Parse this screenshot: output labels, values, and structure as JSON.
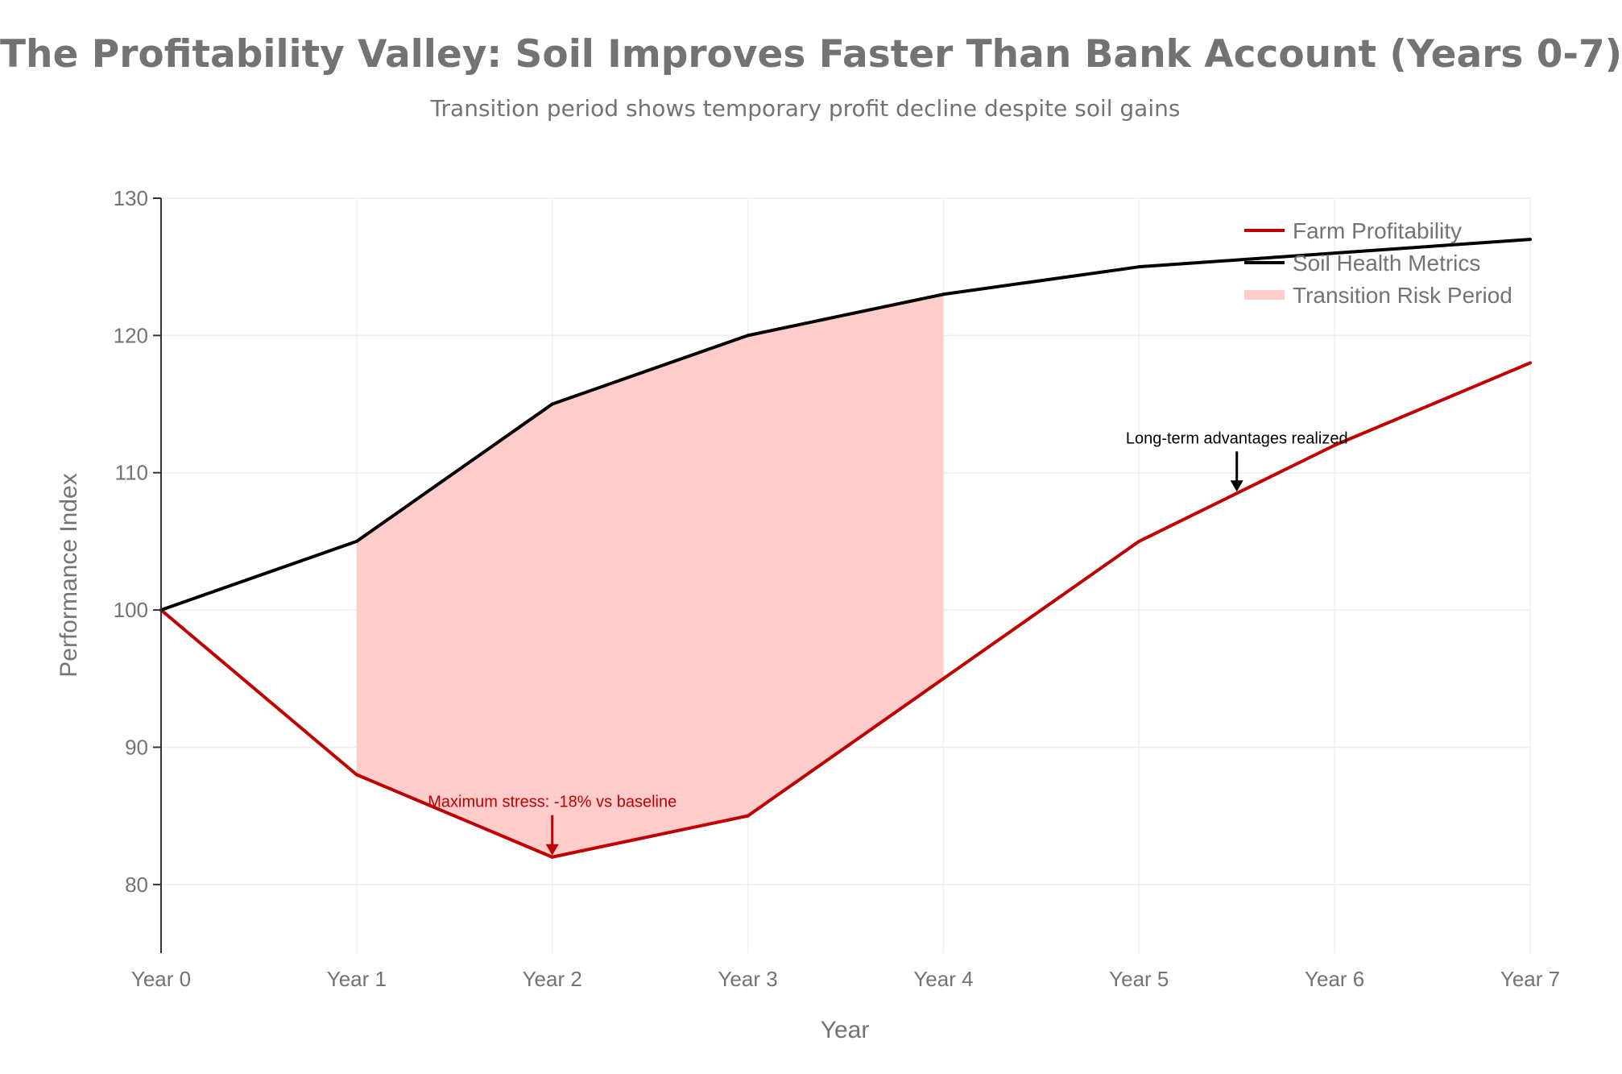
{
  "title": "The Profitability Valley: Soil Improves Faster Than Bank Account (Years 0-7)",
  "subtitle": "Transition period shows temporary profit decline despite soil gains",
  "chart_data": {
    "type": "line",
    "x": [
      "Year 0",
      "Year 1",
      "Year 2",
      "Year 3",
      "Year 4",
      "Year 5",
      "Year 6",
      "Year 7"
    ],
    "xlabel": "Year",
    "ylabel": "Performance Index",
    "ylim": [
      75,
      130
    ],
    "yticks": [
      80,
      90,
      100,
      110,
      120,
      130
    ],
    "grid": true,
    "legend_position": "top-right",
    "series": [
      {
        "name": "Farm Profitability",
        "color": "#c00000",
        "values": [
          100,
          88,
          82,
          85,
          95,
          105,
          112,
          118
        ]
      },
      {
        "name": "Soil Health Metrics",
        "color": "#000000",
        "values": [
          100,
          105,
          115,
          120,
          123,
          125,
          126,
          127
        ]
      }
    ],
    "shaded_region": {
      "name": "Transition Risk Period",
      "color": "#ffcccc",
      "from": "Year 1",
      "to": "Year 4"
    },
    "annotations": [
      {
        "text": "Maximum stress: -18% vs baseline",
        "x": 2,
        "y": 82,
        "color": "#c00000"
      },
      {
        "text": "Long-term advantages realized",
        "x": 5.5,
        "y": 108.5,
        "color": "#000000"
      }
    ]
  }
}
